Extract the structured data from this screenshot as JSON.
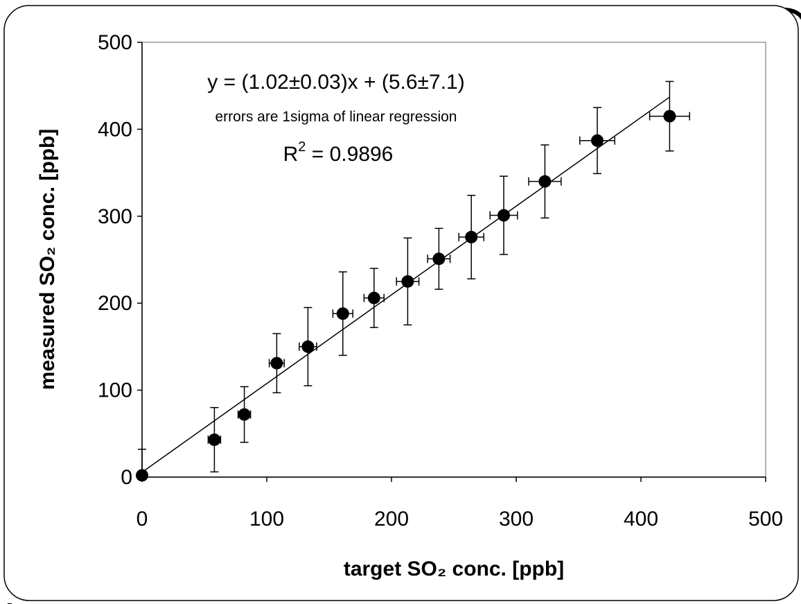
{
  "chart_data": {
    "type": "scatter",
    "xlabel": "target SO₂ conc. [ppb]",
    "ylabel": "measured SO₂ conc. [ppb]",
    "xlim": [
      0,
      500
    ],
    "ylim": [
      0,
      500
    ],
    "xticks": [
      "0",
      "100",
      "200",
      "300",
      "400",
      "500"
    ],
    "yticks": [
      "0",
      "100",
      "200",
      "300",
      "400",
      "500"
    ],
    "grid": false,
    "legend": "none",
    "annotations": {
      "equation": "y = (1.02±0.03)x + (5.6±7.1)",
      "note": "errors are 1sigma of linear regression",
      "r2_prefix": "R",
      "r2_sup": "2",
      "r2_value": " = 0.9896"
    },
    "fit_line": {
      "slope": 1.02,
      "intercept": 5.6,
      "x_range": [
        0,
        423
      ]
    },
    "points": [
      {
        "x": 0,
        "y": 2,
        "xerr": 0,
        "yerr": 30
      },
      {
        "x": 58,
        "y": 43,
        "xerr": 5,
        "yerr": 37
      },
      {
        "x": 82,
        "y": 72,
        "xerr": 5,
        "yerr": 32
      },
      {
        "x": 108,
        "y": 131,
        "xerr": 6,
        "yerr": 34
      },
      {
        "x": 133,
        "y": 150,
        "xerr": 7,
        "yerr": 45
      },
      {
        "x": 161,
        "y": 188,
        "xerr": 8,
        "yerr": 48
      },
      {
        "x": 186,
        "y": 206,
        "xerr": 8,
        "yerr": 34
      },
      {
        "x": 213,
        "y": 225,
        "xerr": 9,
        "yerr": 50
      },
      {
        "x": 238,
        "y": 251,
        "xerr": 9,
        "yerr": 35
      },
      {
        "x": 264,
        "y": 276,
        "xerr": 10,
        "yerr": 48
      },
      {
        "x": 290,
        "y": 301,
        "xerr": 11,
        "yerr": 45
      },
      {
        "x": 323,
        "y": 340,
        "xerr": 13,
        "yerr": 42
      },
      {
        "x": 365,
        "y": 387,
        "xerr": 14,
        "yerr": 38
      },
      {
        "x": 423,
        "y": 415,
        "xerr": 16,
        "yerr": 40
      }
    ],
    "colors": {
      "marker": "#000000",
      "line": "#000000",
      "frame": "#9a9a9a"
    }
  }
}
